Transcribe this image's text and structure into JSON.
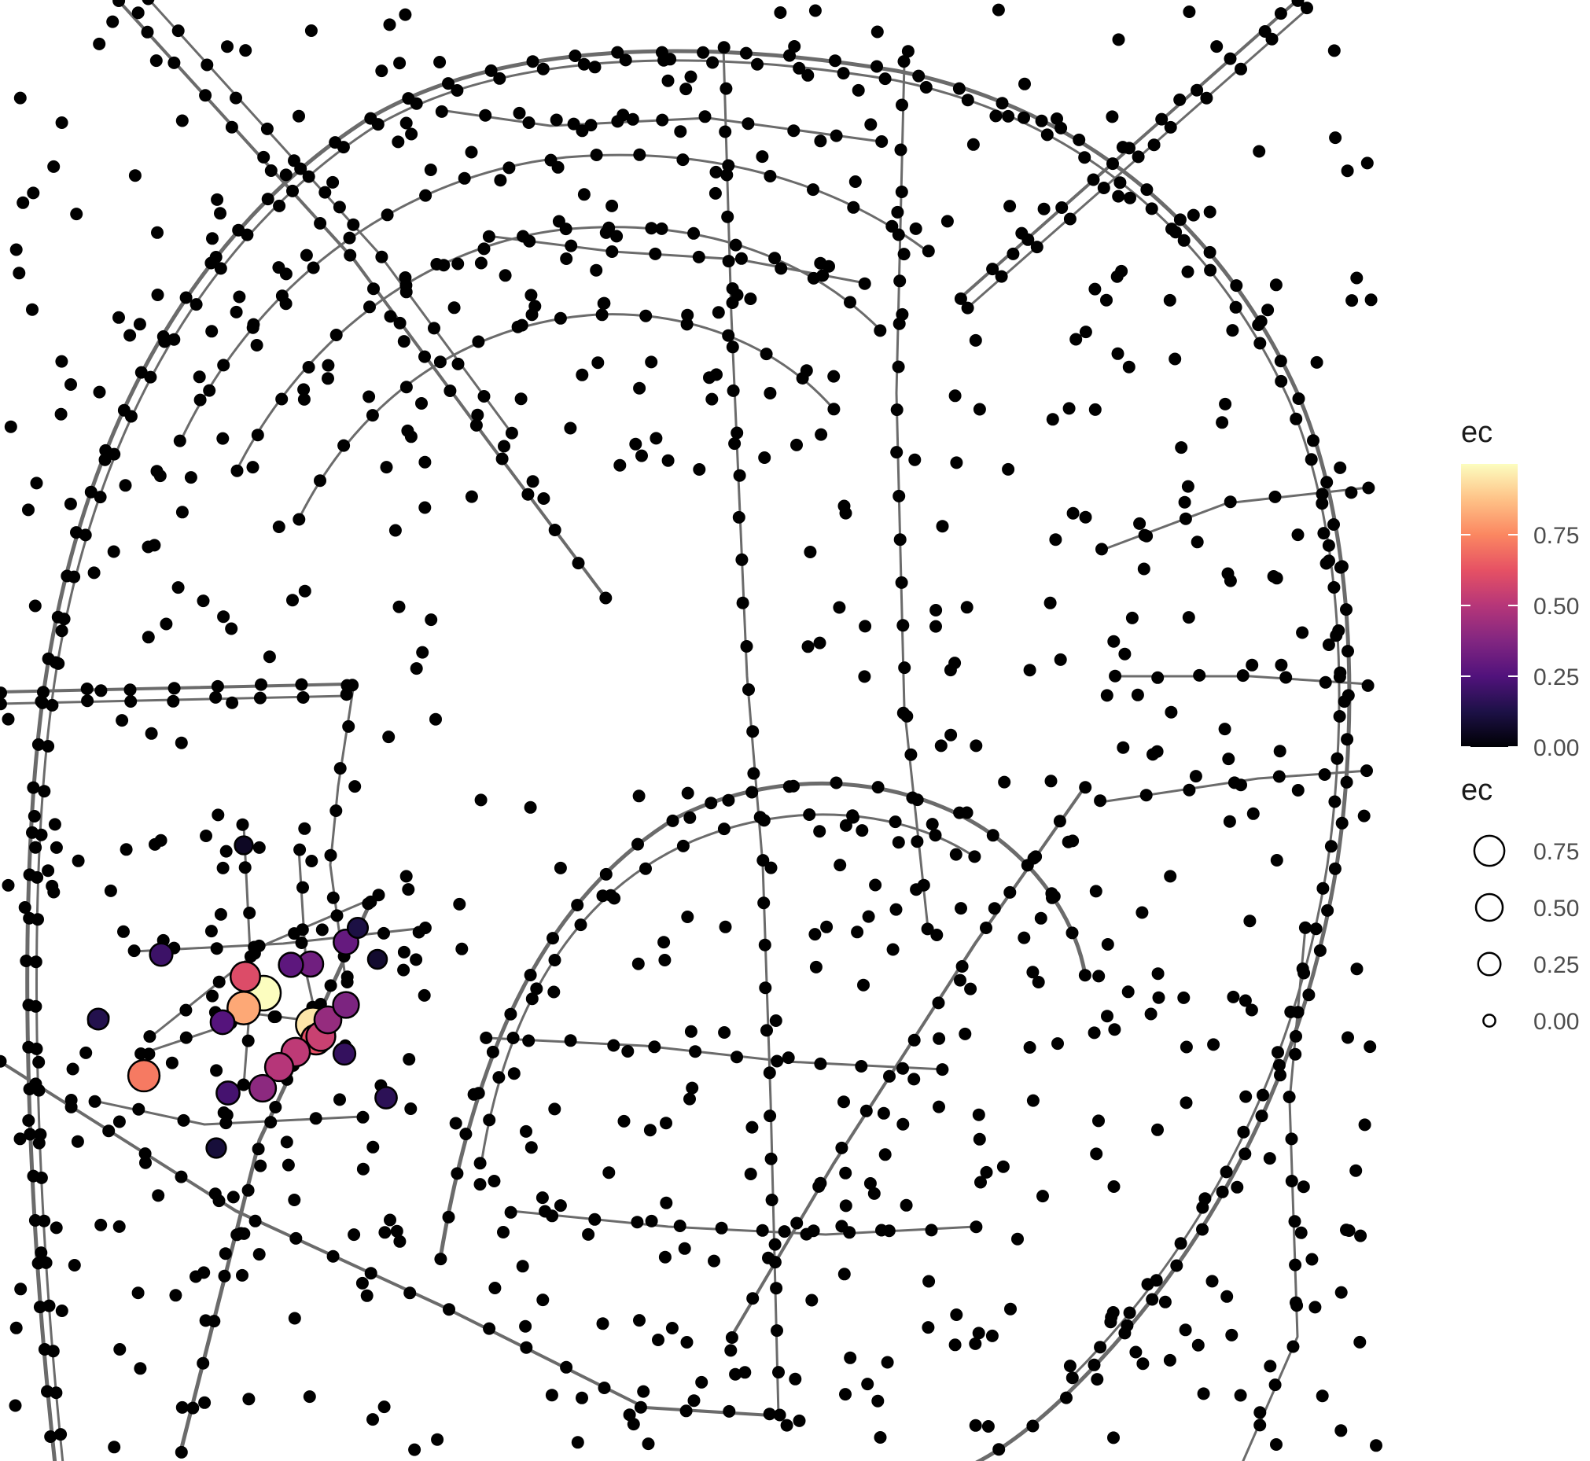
{
  "chart_data": {
    "type": "network",
    "layers": [
      "road edges (grey lines)",
      "nodes (points)"
    ],
    "node_default_color": "#000000",
    "edge_color": "#6b6b6b",
    "colorbar": {
      "title": "ec",
      "ticks": [
        "0.00",
        "0.25",
        "0.50",
        "0.75"
      ],
      "tick_values": [
        0,
        0.25,
        0.5,
        0.75
      ],
      "range": [
        0,
        1
      ],
      "palette": "magma",
      "stops": [
        "#000004",
        "#1d1147",
        "#51127c",
        "#822681",
        "#b63679",
        "#e65164",
        "#fb8761",
        "#fec287",
        "#fcfdbf"
      ]
    },
    "size_legend": {
      "title": "ec",
      "entries": [
        {
          "label": "0.75",
          "value": 0.75
        },
        {
          "label": "0.50",
          "value": 0.5
        },
        {
          "label": "0.25",
          "value": 0.25
        },
        {
          "label": "0.00",
          "value": 0
        }
      ]
    },
    "highlighted_nodes": [
      {
        "ec": 1.0
      },
      {
        "ec": 0.95
      },
      {
        "ec": 0.82
      },
      {
        "ec": 0.72
      },
      {
        "ec": 0.62
      },
      {
        "ec": 0.6
      },
      {
        "ec": 0.55
      },
      {
        "ec": 0.52
      },
      {
        "ec": 0.5
      },
      {
        "ec": 0.42
      },
      {
        "ec": 0.4
      },
      {
        "ec": 0.36
      },
      {
        "ec": 0.33
      },
      {
        "ec": 0.3
      },
      {
        "ec": 0.28
      },
      {
        "ec": 0.26
      },
      {
        "ec": 0.22
      },
      {
        "ec": 0.2
      },
      {
        "ec": 0.18
      },
      {
        "ec": 0.16
      },
      {
        "ec": 0.14
      },
      {
        "ec": 0.12
      },
      {
        "ec": 0.1
      },
      {
        "ec": 0.08
      },
      {
        "ec": 0.06
      }
    ]
  }
}
